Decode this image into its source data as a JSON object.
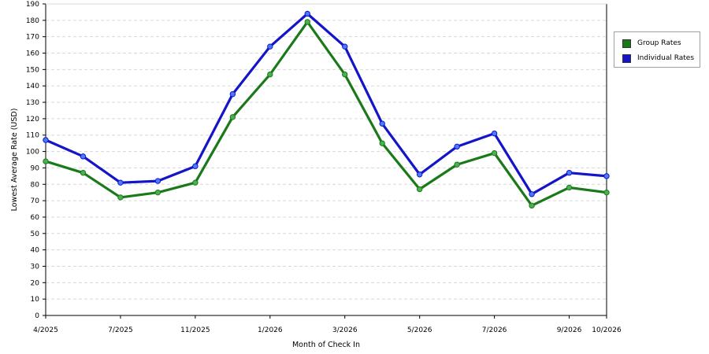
{
  "chart_data": {
    "type": "line",
    "xlabel": "Month of Check In",
    "ylabel": "Lowest Average Rate (USD)",
    "ylim": [
      0,
      190
    ],
    "yticks": [
      0,
      10,
      20,
      30,
      40,
      50,
      60,
      70,
      80,
      90,
      100,
      110,
      120,
      130,
      140,
      150,
      160,
      170,
      180,
      190
    ],
    "x_tick_labels": [
      {
        "index": 0,
        "label": "4/2025"
      },
      {
        "index": 2,
        "label": "7/2025"
      },
      {
        "index": 4,
        "label": "11/2025"
      },
      {
        "index": 6,
        "label": "1/2026"
      },
      {
        "index": 8,
        "label": "3/2026"
      },
      {
        "index": 10,
        "label": "5/2026"
      },
      {
        "index": 12,
        "label": "7/2026"
      },
      {
        "index": 14,
        "label": "9/2026"
      },
      {
        "index": 15,
        "label": "10/2026"
      }
    ],
    "point_count": 16,
    "grid": true,
    "legend_position": "right",
    "series": [
      {
        "name": "Group Rates",
        "color": "#1a7a1a",
        "marker_color": "#4caf50",
        "values": [
          94,
          87,
          72,
          75,
          81,
          121,
          147,
          179,
          147,
          105,
          77,
          92,
          99,
          67,
          78,
          75
        ]
      },
      {
        "name": "Individual Rates",
        "color": "#1414c8",
        "marker_color": "#4a7cff",
        "values": [
          107,
          97,
          81,
          82,
          91,
          135,
          164,
          184,
          164,
          117,
          86,
          103,
          111,
          74,
          87,
          85
        ]
      }
    ]
  }
}
